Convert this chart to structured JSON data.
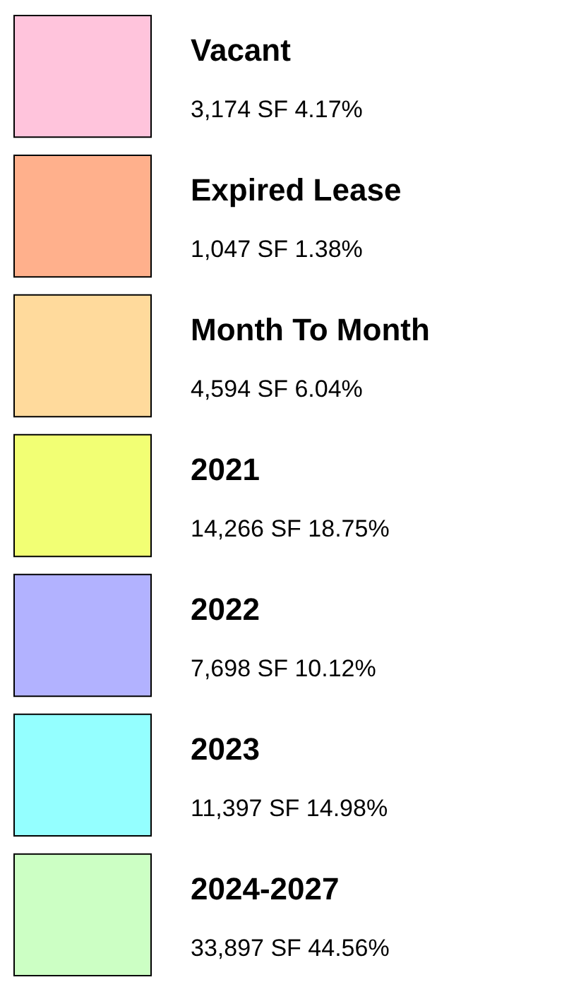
{
  "chart_data": {
    "type": "other",
    "categories": [
      "Vacant",
      "Expired Lease",
      "Month To Month",
      "2021",
      "2022",
      "2023",
      "2024-2027"
    ],
    "values": [
      3174,
      1047,
      4594,
      14266,
      7698,
      11397,
      33897
    ],
    "value_labels": [
      "3,174 SF  4.17%",
      "1,047 SF  1.38%",
      "4,594 SF  6.04%",
      "14,266 SF  18.75%",
      "7,698 SF  10.12%",
      "11,397 SF  14.98%",
      "33,897 SF  44.56%"
    ],
    "colors": [
      "#ffc4dc",
      "#ffb08c",
      "#ffda9c",
      "#f2ff74",
      "#b2b2ff",
      "#94ffff",
      "#ccffc4"
    ]
  }
}
